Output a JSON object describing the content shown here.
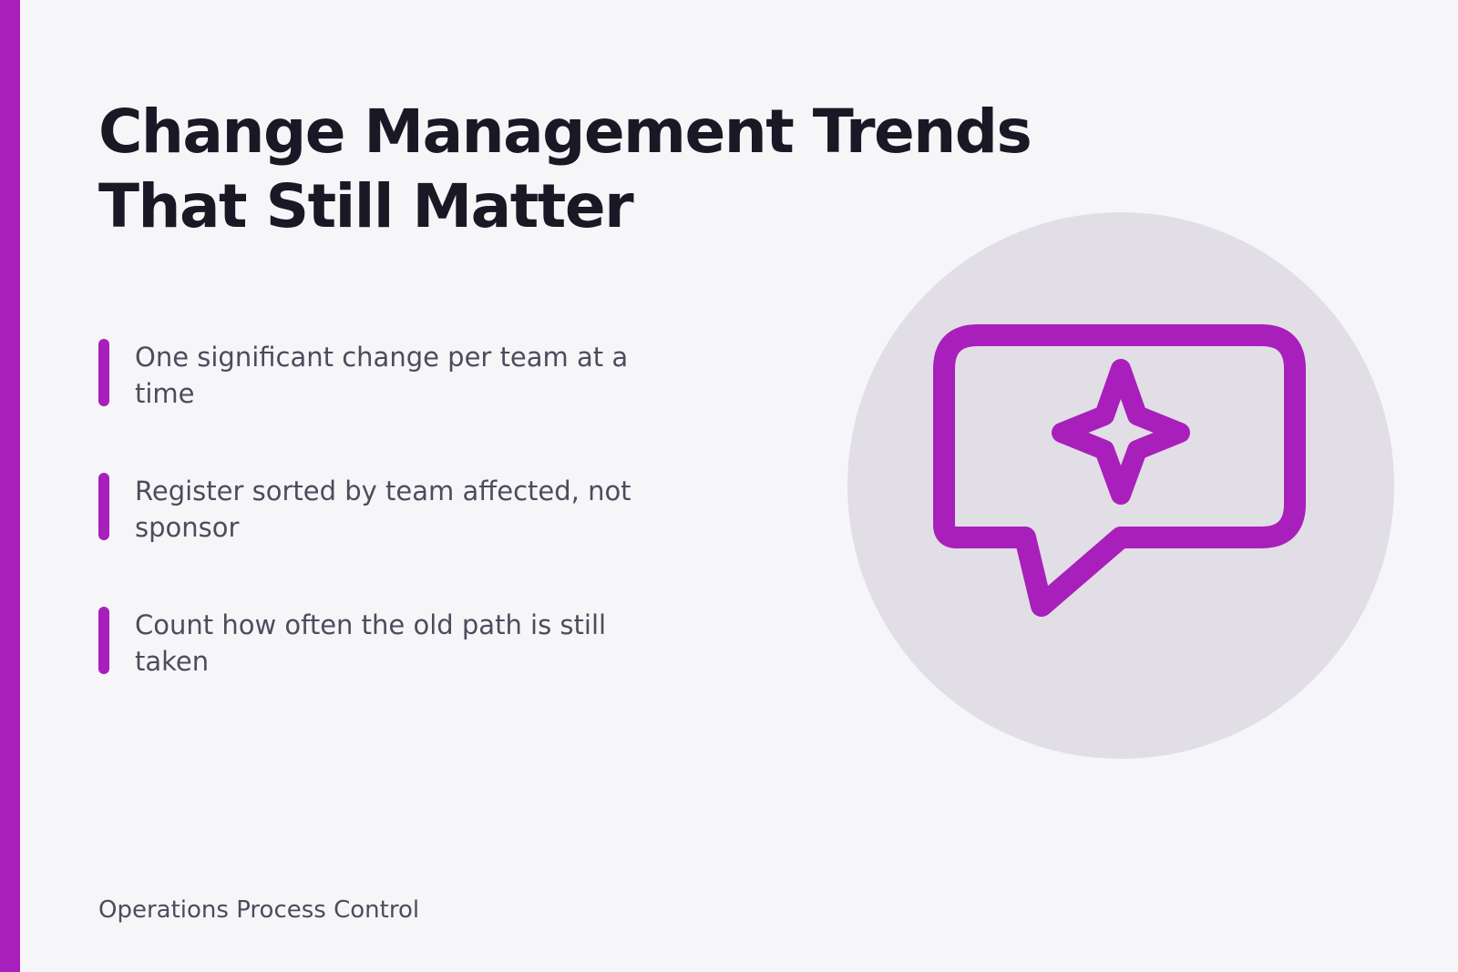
{
  "slide": {
    "title": "Change Management Trends That Still Matter",
    "bullets": [
      "One significant change per team at a time",
      "Register sorted by team affected, not sponsor",
      "Count how often the old path is still taken"
    ],
    "footer": "Operations Process Control",
    "icon": "chat-sparkle-icon"
  },
  "colors": {
    "accent": "#a91fbb",
    "background": "#f6f6f9",
    "circle": "#e1dee6",
    "title": "#1a1824",
    "body_text": "#4e4b5c"
  }
}
